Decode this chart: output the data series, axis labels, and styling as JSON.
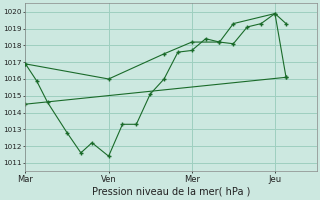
{
  "xlabel": "Pression niveau de la mer( hPa )",
  "background_color": "#cce8e0",
  "grid_color": "#9ecfbf",
  "line_color": "#1a6b2a",
  "x_tick_labels": [
    "Mar",
    "Ven",
    "Mer",
    "Jeu"
  ],
  "x_tick_positions": [
    0,
    3,
    6,
    9
  ],
  "ylim": [
    1010.5,
    1020.5
  ],
  "yticks": [
    1011,
    1012,
    1013,
    1014,
    1015,
    1016,
    1017,
    1018,
    1019,
    1020
  ],
  "line1_x": [
    0,
    0.4,
    0.8,
    1.5,
    2.0,
    2.4,
    3.0,
    3.5,
    4.0,
    4.5,
    5.0,
    5.5,
    6.0,
    6.5,
    7.0,
    7.5,
    8.0,
    8.5,
    9.0,
    9.4
  ],
  "line1_y": [
    1016.9,
    1015.9,
    1014.6,
    1012.8,
    1011.6,
    1012.2,
    1011.4,
    1013.3,
    1013.3,
    1015.1,
    1016.0,
    1017.6,
    1017.7,
    1018.4,
    1018.2,
    1018.1,
    1019.1,
    1019.3,
    1019.9,
    1019.3
  ],
  "line2_x": [
    0,
    3.0,
    5.0,
    6.0,
    7.0,
    7.5,
    9.0,
    9.4
  ],
  "line2_y": [
    1016.9,
    1016.0,
    1017.5,
    1018.2,
    1018.2,
    1019.3,
    1019.9,
    1016.1
  ],
  "line3_x": [
    0,
    9.4
  ],
  "line3_y": [
    1014.5,
    1016.1
  ],
  "vlines_x": [
    0,
    3,
    6,
    9
  ],
  "xlim": [
    0,
    10.5
  ]
}
